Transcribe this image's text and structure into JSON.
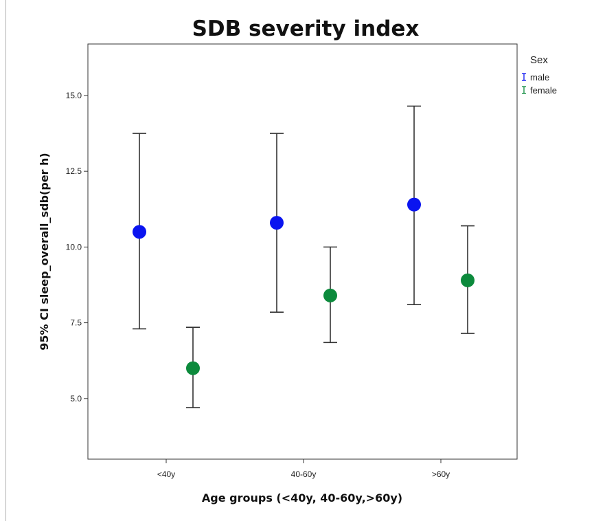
{
  "chart_data": {
    "type": "scatter",
    "title": "SDB severity index",
    "xlabel": "Age groups (<40y, 40-60y,>60y)",
    "ylabel": "95% CI sleep_overall_sdb(per h)",
    "categories": [
      "<40y",
      "40-60y",
      ">60y"
    ],
    "yticks": [
      "5.0",
      "7.5",
      "10.0",
      "12.5",
      "15.0"
    ],
    "ytick_values": [
      5.0,
      7.5,
      10.0,
      12.5,
      15.0
    ],
    "ylim": [
      3.0,
      16.7
    ],
    "grid": false,
    "legend": {
      "title": "Sex",
      "placement": "top-right"
    },
    "series": [
      {
        "name": "male",
        "color": "#0a14f0",
        "values": [
          10.5,
          10.8,
          11.4
        ],
        "ci_low": [
          7.3,
          7.85,
          8.1
        ],
        "ci_high": [
          13.75,
          13.75,
          14.65
        ]
      },
      {
        "name": "female",
        "color": "#0c8a3c",
        "values": [
          6.0,
          8.4,
          8.9
        ],
        "ci_low": [
          4.7,
          6.85,
          7.15
        ],
        "ci_high": [
          7.35,
          10.0,
          10.7
        ]
      }
    ]
  }
}
